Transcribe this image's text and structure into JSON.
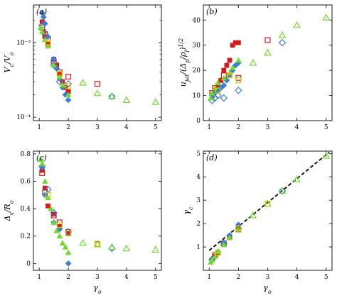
{
  "colors": {
    "red": "#d7191c",
    "blue": "#3b7fd6",
    "green": "#6fdc2d",
    "yellow": "#d8c800",
    "frame": "#000000"
  },
  "chart_data": [
    {
      "id": "a",
      "panel_label": "(a)",
      "type": "scatter",
      "yscale": "log",
      "ylabel_main": "V",
      "ylabel_main_sub": "c",
      "ylabel_slash": "/V",
      "ylabel_slash_sub": "o",
      "xlabel": "",
      "xlim": [
        0.8,
        5.2
      ],
      "ylim": [
        9e-05,
        0.0032
      ],
      "xticks": [
        1,
        2,
        3,
        4,
        5
      ],
      "xtick_labels": [
        "1",
        "2",
        "3",
        "4",
        "5"
      ],
      "yticks": [
        0.0001,
        0.001
      ],
      "ytick_labels": [
        "10⁻⁴",
        "10⁻³"
      ],
      "series": [
        {
          "marker": "filled-square",
          "color": "red",
          "points": [
            [
              1.1,
              0.0019
            ],
            [
              1.15,
              0.0014
            ],
            [
              1.2,
              0.0012
            ],
            [
              1.3,
              0.00095
            ],
            [
              1.5,
              0.0006
            ],
            [
              1.6,
              0.0005
            ],
            [
              1.7,
              0.00038
            ],
            [
              1.8,
              0.0003
            ],
            [
              1.9,
              0.00025
            ],
            [
              2.0,
              0.00022
            ]
          ]
        },
        {
          "marker": "open-square",
          "color": "red",
          "points": [
            [
              1.1,
              0.0016
            ],
            [
              1.2,
              0.0013
            ],
            [
              1.3,
              0.0011
            ],
            [
              1.5,
              0.00056
            ],
            [
              1.7,
              0.0004
            ],
            [
              2.0,
              0.00035
            ],
            [
              3.0,
              0.00028
            ]
          ]
        },
        {
          "marker": "filled-diamond",
          "color": "blue",
          "points": [
            [
              1.1,
              0.0025
            ],
            [
              1.15,
              0.0022
            ],
            [
              1.2,
              0.0018
            ],
            [
              1.3,
              0.0012
            ],
            [
              1.5,
              0.0006
            ],
            [
              1.6,
              0.00045
            ],
            [
              1.7,
              0.00033
            ],
            [
              1.8,
              0.00025
            ],
            [
              1.9,
              0.0002
            ],
            [
              2.0,
              0.00017
            ]
          ]
        },
        {
          "marker": "open-diamond",
          "color": "blue",
          "points": [
            [
              1.1,
              0.0017
            ],
            [
              1.2,
              0.0013
            ],
            [
              1.5,
              0.0005
            ],
            [
              1.7,
              0.0003
            ],
            [
              2.0,
              0.00028
            ],
            [
              3.5,
              0.00019
            ]
          ]
        },
        {
          "marker": "filled-triangle",
          "color": "green",
          "points": [
            [
              1.05,
              0.0016
            ],
            [
              1.1,
              0.0014
            ],
            [
              1.2,
              0.0011
            ],
            [
              1.3,
              0.0009
            ],
            [
              1.5,
              0.0005
            ],
            [
              1.7,
              0.00035
            ],
            [
              1.8,
              0.00027
            ],
            [
              2.0,
              0.0002
            ]
          ]
        },
        {
          "marker": "open-triangle",
          "color": "green",
          "points": [
            [
              2.5,
              0.00029
            ],
            [
              3.0,
              0.00021
            ],
            [
              3.5,
              0.00019
            ],
            [
              4.0,
              0.00017
            ],
            [
              5.0,
              0.00016
            ]
          ]
        },
        {
          "marker": "open-square",
          "color": "yellow",
          "points": [
            [
              1.3,
              0.001
            ],
            [
              1.7,
              0.00038
            ],
            [
              2.0,
              0.00026
            ]
          ]
        }
      ]
    },
    {
      "id": "b",
      "panel_label": "(b)",
      "type": "scatter",
      "yscale": "linear",
      "ylabel": "u_jet/(Δp/ρl)^1/2",
      "xlabel": "",
      "xlim": [
        0.8,
        5.2
      ],
      "ylim": [
        0,
        46
      ],
      "xticks": [
        1,
        2,
        3,
        4,
        5
      ],
      "xtick_labels": [
        "1",
        "2",
        "3",
        "4",
        "5"
      ],
      "yticks": [
        0,
        10,
        20,
        30,
        40
      ],
      "ytick_labels": [
        "0",
        "10",
        "20",
        "30",
        "40"
      ],
      "series": [
        {
          "marker": "filled-square",
          "color": "red",
          "points": [
            [
              1.1,
              10
            ],
            [
              1.2,
              12
            ],
            [
              1.3,
              14
            ],
            [
              1.4,
              16
            ],
            [
              1.5,
              20
            ],
            [
              1.6,
              22
            ],
            [
              1.7,
              24
            ],
            [
              1.8,
              30
            ],
            [
              1.9,
              31
            ],
            [
              2.0,
              31
            ]
          ]
        },
        {
          "marker": "open-square",
          "color": "red",
          "points": [
            [
              1.1,
              11
            ],
            [
              1.2,
              13
            ],
            [
              1.5,
              18
            ],
            [
              2.0,
              17
            ],
            [
              3.0,
              32
            ]
          ]
        },
        {
          "marker": "filled-diamond",
          "color": "blue",
          "points": [
            [
              1.1,
              10
            ],
            [
              1.2,
              11
            ],
            [
              1.3,
              12
            ],
            [
              1.4,
              13
            ],
            [
              1.5,
              14
            ],
            [
              1.6,
              16
            ],
            [
              1.7,
              18
            ],
            [
              1.8,
              20
            ],
            [
              1.9,
              22
            ],
            [
              2.0,
              23
            ]
          ]
        },
        {
          "marker": "open-diamond",
          "color": "blue",
          "points": [
            [
              1.1,
              8
            ],
            [
              1.2,
              9
            ],
            [
              1.3,
              10
            ],
            [
              1.5,
              9
            ],
            [
              2.0,
              12
            ],
            [
              3.5,
              31
            ]
          ]
        },
        {
          "marker": "filled-triangle",
          "color": "green",
          "points": [
            [
              1.05,
              9
            ],
            [
              1.1,
              11
            ],
            [
              1.2,
              13
            ],
            [
              1.3,
              15
            ],
            [
              1.5,
              17
            ],
            [
              1.7,
              19
            ],
            [
              1.8,
              21
            ],
            [
              2.0,
              24
            ]
          ]
        },
        {
          "marker": "open-triangle",
          "color": "green",
          "points": [
            [
              2.5,
              23
            ],
            [
              3.0,
              27
            ],
            [
              3.5,
              34
            ],
            [
              4.0,
              38
            ],
            [
              5.0,
              41
            ]
          ]
        },
        {
          "marker": "open-square",
          "color": "yellow",
          "points": [
            [
              1.3,
              12
            ],
            [
              1.7,
              18
            ],
            [
              2.0,
              16
            ]
          ]
        }
      ]
    },
    {
      "id": "c",
      "panel_label": "(c)",
      "type": "scatter",
      "yscale": "linear",
      "ylabel_main": "Δ",
      "ylabel_main_sub": "x",
      "ylabel_slash": "/R",
      "ylabel_slash_sub": "o",
      "xlabel_main": "γ",
      "xlabel_sub": "o",
      "xlim": [
        0.8,
        5.2
      ],
      "ylim": [
        -0.05,
        0.82
      ],
      "xticks": [
        1,
        2,
        3,
        4,
        5
      ],
      "xtick_labels": [
        "1",
        "2",
        "3",
        "4",
        "5"
      ],
      "yticks": [
        0,
        0.2,
        0.4,
        0.6,
        0.8
      ],
      "ytick_labels": [
        "0",
        "0.2",
        "0.4",
        "0.6",
        "0.8"
      ],
      "series": [
        {
          "marker": "filled-square",
          "color": "red",
          "points": [
            [
              1.1,
              0.68
            ],
            [
              1.2,
              0.55
            ],
            [
              1.3,
              0.42
            ],
            [
              1.5,
              0.36
            ],
            [
              1.7,
              0.27
            ],
            [
              2.0,
              0.22
            ]
          ]
        },
        {
          "marker": "open-square",
          "color": "red",
          "points": [
            [
              1.1,
              0.66
            ],
            [
              1.2,
              0.52
            ],
            [
              1.5,
              0.35
            ],
            [
              1.7,
              0.3
            ],
            [
              2.0,
              0.23
            ],
            [
              3.0,
              0.14
            ]
          ]
        },
        {
          "marker": "filled-diamond",
          "color": "blue",
          "points": [
            [
              1.1,
              0.7
            ],
            [
              1.2,
              0.5
            ],
            [
              1.5,
              0.3
            ],
            [
              1.7,
              0.25
            ],
            [
              2.0,
              0.0
            ]
          ]
        },
        {
          "marker": "open-diamond",
          "color": "blue",
          "points": [
            [
              1.1,
              0.71
            ],
            [
              1.3,
              0.54
            ],
            [
              1.5,
              0.37
            ],
            [
              2.0,
              0.23
            ],
            [
              3.5,
              0.11
            ]
          ]
        },
        {
          "marker": "filled-triangle",
          "color": "green",
          "points": [
            [
              1.05,
              0.76
            ],
            [
              1.1,
              0.73
            ],
            [
              1.2,
              0.6
            ],
            [
              1.3,
              0.48
            ],
            [
              1.4,
              0.4
            ],
            [
              1.5,
              0.3
            ],
            [
              1.6,
              0.24
            ],
            [
              1.7,
              0.2
            ],
            [
              1.8,
              0.15
            ],
            [
              1.9,
              0.12
            ],
            [
              2.0,
              0.08
            ]
          ]
        },
        {
          "marker": "open-triangle",
          "color": "green",
          "points": [
            [
              2.5,
              0.15
            ],
            [
              3.0,
              0.14
            ],
            [
              3.5,
              0.12
            ],
            [
              4.0,
              0.11
            ],
            [
              5.0,
              0.1
            ]
          ]
        },
        {
          "marker": "open-square",
          "color": "yellow",
          "points": [
            [
              1.3,
              0.5
            ],
            [
              1.7,
              0.28
            ],
            [
              2.0,
              0.22
            ],
            [
              3.0,
              0.145
            ]
          ]
        }
      ]
    },
    {
      "id": "d",
      "panel_label": "(d)",
      "type": "scatter",
      "yscale": "linear",
      "ylabel_main": "γ",
      "ylabel_sub": "c",
      "xlabel_main": "γ",
      "xlabel_sub": "o",
      "xlim": [
        0.8,
        5.2
      ],
      "ylim": [
        0,
        5.1
      ],
      "xticks": [
        1,
        2,
        3,
        4,
        5
      ],
      "xtick_labels": [
        "1",
        "2",
        "3",
        "4",
        "5"
      ],
      "yticks": [
        1,
        2,
        3,
        4,
        5
      ],
      "ytick_labels": [
        "1",
        "2",
        "3",
        "4",
        "5"
      ],
      "dashed_line": [
        [
          1.0,
          0.85
        ],
        [
          5.1,
          5.05
        ]
      ],
      "series": [
        {
          "marker": "filled-square",
          "color": "red",
          "points": [
            [
              1.1,
              0.45
            ],
            [
              1.2,
              0.6
            ],
            [
              1.3,
              0.75
            ],
            [
              1.5,
              1.1
            ],
            [
              1.7,
              1.4
            ],
            [
              2.0,
              1.8
            ]
          ]
        },
        {
          "marker": "open-square",
          "color": "red",
          "points": [
            [
              1.2,
              0.65
            ],
            [
              1.5,
              1.15
            ],
            [
              2.0,
              1.75
            ],
            [
              3.0,
              2.85
            ]
          ]
        },
        {
          "marker": "filled-diamond",
          "color": "blue",
          "points": [
            [
              1.1,
              0.5
            ],
            [
              1.3,
              0.8
            ],
            [
              1.5,
              1.2
            ],
            [
              1.7,
              1.5
            ],
            [
              2.0,
              1.95
            ]
          ]
        },
        {
          "marker": "open-diamond",
          "color": "blue",
          "points": [
            [
              1.1,
              0.45
            ],
            [
              1.5,
              1.15
            ],
            [
              2.0,
              1.8
            ],
            [
              3.5,
              3.4
            ]
          ]
        },
        {
          "marker": "filled-triangle",
          "color": "green",
          "points": [
            [
              1.05,
              0.35
            ],
            [
              1.1,
              0.45
            ],
            [
              1.2,
              0.6
            ],
            [
              1.3,
              0.8
            ],
            [
              1.5,
              1.1
            ],
            [
              1.7,
              1.4
            ],
            [
              2.0,
              1.75
            ]
          ]
        },
        {
          "marker": "open-triangle",
          "color": "green",
          "points": [
            [
              2.5,
              2.35
            ],
            [
              3.0,
              2.85
            ],
            [
              3.5,
              3.4
            ],
            [
              4.0,
              3.9
            ],
            [
              5.0,
              4.9
            ]
          ]
        },
        {
          "marker": "open-square",
          "color": "yellow",
          "points": [
            [
              1.3,
              0.75
            ],
            [
              2.0,
              1.8
            ],
            [
              3.0,
              2.85
            ]
          ]
        }
      ]
    }
  ]
}
